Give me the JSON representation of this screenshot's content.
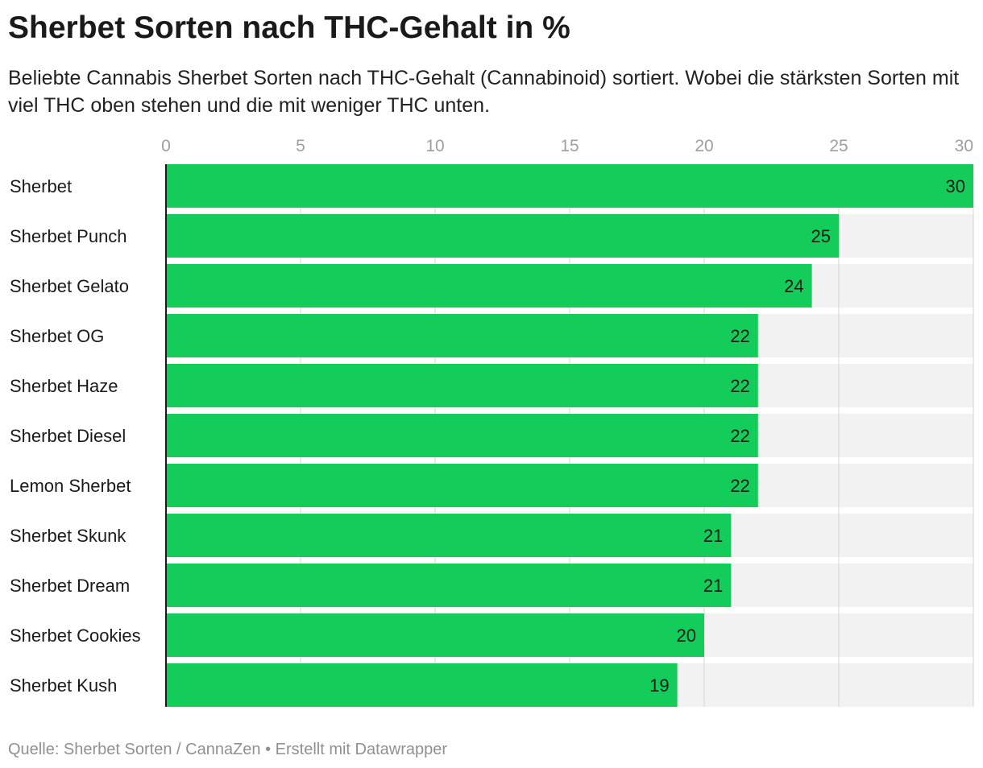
{
  "header": {
    "title": "Sherbet Sorten nach THC-Gehalt in %",
    "subtitle": "Beliebte Cannabis Sherbet Sorten nach THC-Gehalt (Cannabinoid) sortiert. Wobei die stärksten Sorten mit viel THC oben stehen und die mit weniger THC unten."
  },
  "footer": {
    "text": "Quelle: Sherbet Sorten / CannaZen • Erstellt mit Datawrapper"
  },
  "chart_data": {
    "type": "bar",
    "orientation": "horizontal",
    "categories": [
      "Sherbet",
      "Sherbet Punch",
      "Sherbet Gelato",
      "Sherbet OG",
      "Sherbet Haze",
      "Sherbet Diesel",
      "Lemon Sherbet",
      "Sherbet Skunk",
      "Sherbet Dream",
      "Sherbet Cookies",
      "Sherbet Kush"
    ],
    "values": [
      30,
      25,
      24,
      22,
      22,
      22,
      22,
      21,
      21,
      20,
      19
    ],
    "xlim": [
      0,
      30
    ],
    "xticks": [
      0,
      5,
      10,
      15,
      20,
      25,
      30
    ],
    "axis_position": "top",
    "grid": true,
    "data_labels": true,
    "colors": {
      "bar": "#13cc59",
      "track": "#f2f2f2",
      "grid": "#d4d4d4",
      "tick_label": "#9e9e9e",
      "axis_line": "#1a1a1a"
    }
  }
}
